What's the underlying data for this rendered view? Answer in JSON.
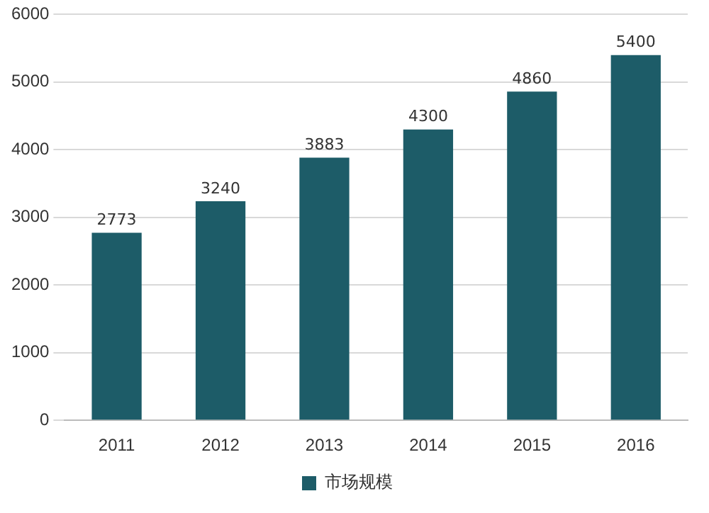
{
  "chart_data": {
    "type": "bar",
    "categories": [
      "2011",
      "2012",
      "2013",
      "2014",
      "2015",
      "2016"
    ],
    "series": [
      {
        "name": "市场规模",
        "color": "#1d5c68",
        "values": [
          2773,
          3240,
          3883,
          4300,
          4860,
          5400
        ]
      }
    ],
    "ylim": [
      0,
      6000
    ],
    "yticks": [
      0,
      1000,
      2000,
      3000,
      4000,
      5000,
      6000
    ],
    "grid": "y",
    "legend": "bottom",
    "data_labels": true
  }
}
